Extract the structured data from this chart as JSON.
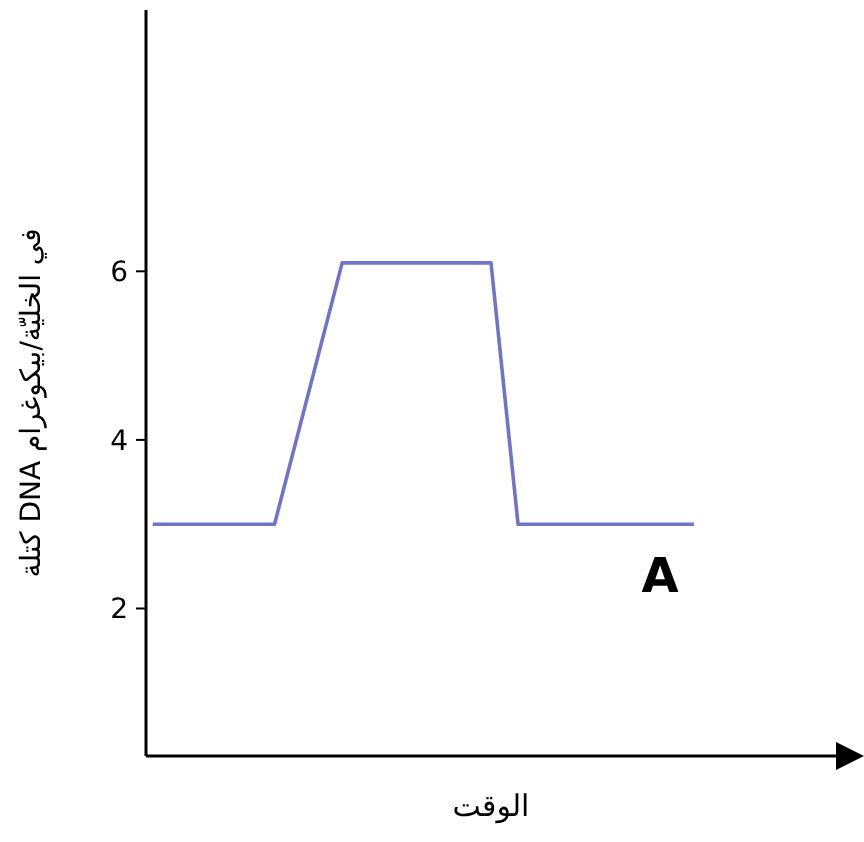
{
  "chart_data": {
    "type": "line",
    "categories": [
      null,
      null,
      null,
      null,
      null,
      null,
      null,
      null,
      null,
      null,
      null,
      null,
      null,
      null,
      null,
      null,
      null,
      null,
      null,
      null,
      null,
      null,
      null,
      null,
      null,
      null,
      null,
      null,
      null,
      null,
      null,
      null,
      null,
      null,
      null,
      null,
      null,
      null,
      null,
      null,
      null,
      null,
      null,
      null,
      null,
      null,
      null,
      null,
      null,
      null,
      null
    ],
    "series": [
      {
        "color": "#6f74c9",
        "values": [
          3,
          null,
          null,
          null,
          null,
          null,
          null,
          null,
          null,
          3,
          null,
          null,
          null,
          null,
          6.1,
          null,
          null,
          null,
          null,
          null,
          null,
          null,
          null,
          null,
          null,
          6.1,
          null,
          3,
          null,
          null,
          null,
          null,
          null,
          null,
          null,
          null,
          null,
          null,
          null,
          null,
          3,
          null,
          null,
          null,
          null,
          null,
          null,
          null,
          null,
          null,
          null
        ]
      }
    ],
    "ylim": [
      0.25,
      9.1
    ],
    "yticks": [
      2,
      4,
      6
    ],
    "ylabel": "كتلة DNA في الخليّة/بيكوغرام",
    "xlabel": "الوقت",
    "annotations": [
      "A"
    ],
    "grid": false,
    "marker": "none",
    "line_style": "solid"
  }
}
